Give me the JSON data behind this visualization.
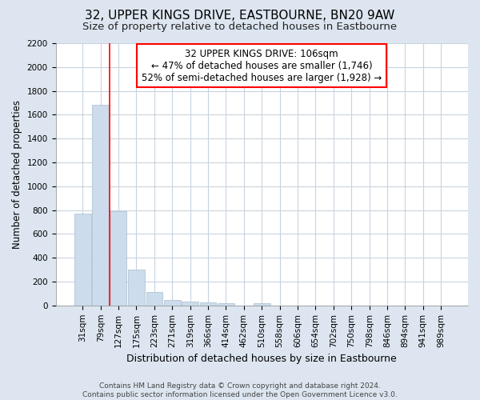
{
  "title": "32, UPPER KINGS DRIVE, EASTBOURNE, BN20 9AW",
  "subtitle": "Size of property relative to detached houses in Eastbourne",
  "xlabel": "Distribution of detached houses by size in Eastbourne",
  "ylabel": "Number of detached properties",
  "footer_line1": "Contains HM Land Registry data © Crown copyright and database right 2024.",
  "footer_line2": "Contains public sector information licensed under the Open Government Licence v3.0.",
  "annotation_line1": "32 UPPER KINGS DRIVE: 106sqm",
  "annotation_line2": "← 47% of detached houses are smaller (1,746)",
  "annotation_line3": "52% of semi-detached houses are larger (1,928) →",
  "bar_color": "#ccdcec",
  "bar_edge_color": "#aabbcc",
  "vline_color": "red",
  "vline_x": 1.5,
  "categories": [
    "31sqm",
    "79sqm",
    "127sqm",
    "175sqm",
    "223sqm",
    "271sqm",
    "319sqm",
    "366sqm",
    "414sqm",
    "462sqm",
    "510sqm",
    "558sqm",
    "606sqm",
    "654sqm",
    "702sqm",
    "750sqm",
    "798sqm",
    "846sqm",
    "894sqm",
    "941sqm",
    "989sqm"
  ],
  "values": [
    770,
    1680,
    790,
    300,
    110,
    45,
    32,
    25,
    22,
    0,
    20,
    0,
    0,
    0,
    0,
    0,
    0,
    0,
    0,
    0,
    0
  ],
  "ylim": [
    0,
    2200
  ],
  "yticks": [
    0,
    200,
    400,
    600,
    800,
    1000,
    1200,
    1400,
    1600,
    1800,
    2000,
    2200
  ],
  "figure_bg": "#dde6f0",
  "plot_bg": "#ffffff",
  "grid_color": "#c8d4e0",
  "title_fontsize": 11,
  "subtitle_fontsize": 9.5,
  "ylabel_fontsize": 8.5,
  "xlabel_fontsize": 9,
  "tick_fontsize": 7.5,
  "annotation_fontsize": 8.5,
  "footer_fontsize": 6.5
}
